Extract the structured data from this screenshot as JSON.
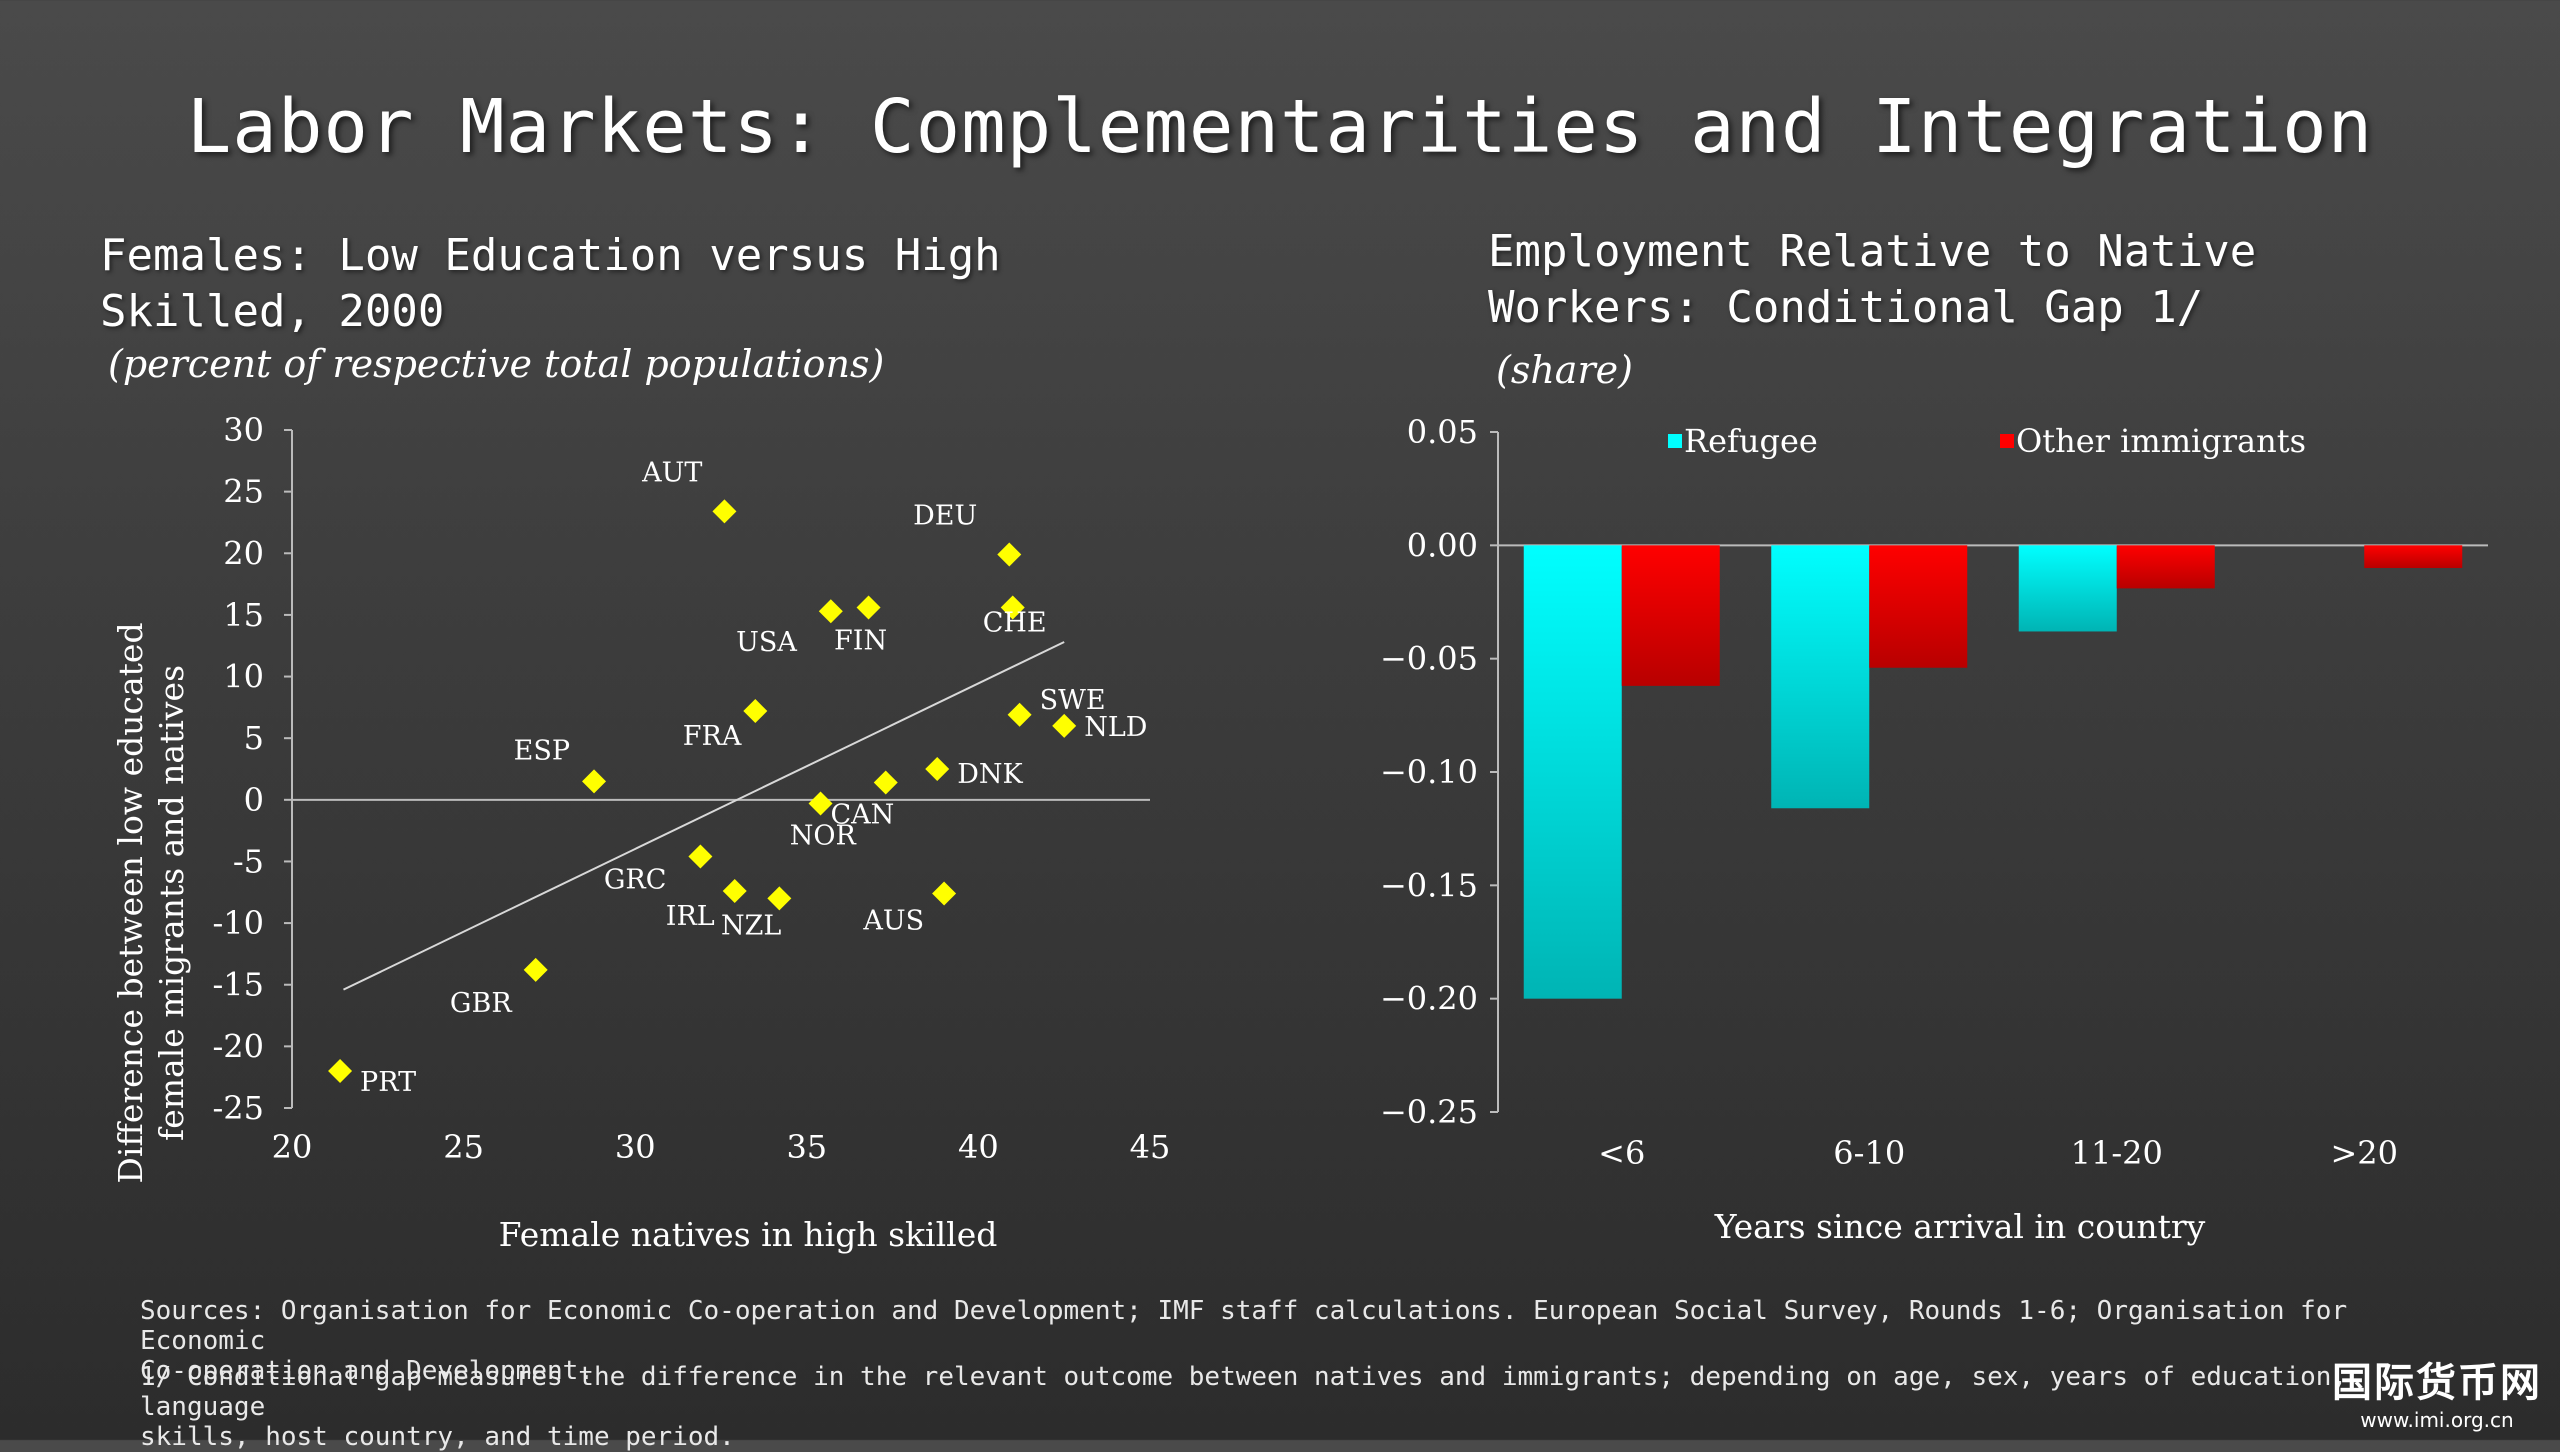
{
  "title": "Labor Markets: Complementarities and Integration",
  "left_panel": {
    "title_line1": "Females: Low Education versus High",
    "title_line2": "Skilled, 2000",
    "subtitle": "(percent of respective total populations)"
  },
  "right_panel": {
    "title_line1": "Employment Relative to Native",
    "title_line2": "Workers: Conditional Gap 1/",
    "subtitle": "(share)"
  },
  "chart_data": [
    {
      "type": "scatter",
      "xlabel": "Female natives in high skilled",
      "ylabel_line1": "Difference between low educated",
      "ylabel_line2": "female migrants and natives",
      "xlim": [
        20,
        45
      ],
      "ylim": [
        -25,
        30
      ],
      "xticks": [
        20,
        25,
        30,
        35,
        40,
        45
      ],
      "yticks": [
        30,
        25,
        20,
        15,
        10,
        5,
        0,
        -5,
        -10,
        -15,
        -20,
        -25
      ],
      "marker_color": "#ffff00",
      "points": [
        {
          "label": "PRT",
          "x": 21.4,
          "y": -22.0
        },
        {
          "label": "GBR",
          "x": 27.1,
          "y": -13.8
        },
        {
          "label": "ESP",
          "x": 28.8,
          "y": 1.5
        },
        {
          "label": "GRC",
          "x": 31.9,
          "y": -4.6
        },
        {
          "label": "IRL",
          "x": 32.9,
          "y": -7.4
        },
        {
          "label": "AUT",
          "x": 32.6,
          "y": 23.4
        },
        {
          "label": "FRA",
          "x": 33.5,
          "y": 7.2
        },
        {
          "label": "NZL",
          "x": 34.2,
          "y": -8.0
        },
        {
          "label": "CAN",
          "x": 35.4,
          "y": -0.3
        },
        {
          "label": "USA",
          "x": 35.7,
          "y": 15.3
        },
        {
          "label": "FIN",
          "x": 36.8,
          "y": 15.6
        },
        {
          "label": "NOR",
          "x": 37.3,
          "y": 1.4
        },
        {
          "label": "DNK",
          "x": 38.8,
          "y": 2.5
        },
        {
          "label": "AUS",
          "x": 39.0,
          "y": -7.6
        },
        {
          "label": "DEU",
          "x": 40.9,
          "y": 19.9
        },
        {
          "label": "CHE",
          "x": 41.0,
          "y": 15.6
        },
        {
          "label": "SWE",
          "x": 41.2,
          "y": 6.9
        },
        {
          "label": "NLD",
          "x": 42.5,
          "y": 6.0
        }
      ],
      "trendline": {
        "x": [
          21.5,
          42.5
        ],
        "y": [
          -15.4,
          12.8
        ]
      }
    },
    {
      "type": "bar",
      "xlabel": "Years since arrival in country",
      "categories": [
        "<6",
        "6-10",
        "11-20",
        ">20"
      ],
      "ylim": [
        -0.25,
        0.05
      ],
      "yticks": [
        "0.05",
        "0.00",
        "−0.05",
        "−0.10",
        "−0.15",
        "−0.20",
        "−0.25"
      ],
      "legend": "top",
      "series": [
        {
          "name": "Refugee",
          "color": "#00ffff",
          "values": [
            -0.2,
            -0.116,
            -0.038,
            null
          ]
        },
        {
          "name": "Other immigrants",
          "color": "#ff0000",
          "values": [
            -0.062,
            -0.054,
            -0.019,
            -0.01
          ]
        }
      ]
    }
  ],
  "footer": {
    "sources_line1": "Sources: Organisation for Economic Co-operation and Development; IMF staff calculations. European Social Survey, Rounds 1-6; Organisation for Economic",
    "sources_line2": "Co-operation and Development.",
    "note_line1": "1/ Conditional gap measures the difference in the relevant outcome between natives and immigrants; depending on age, sex, years of education, language",
    "note_line2": "skills, host country, and time period."
  },
  "watermark": {
    "text": "国际货币网",
    "url": "www.imi.org.cn"
  }
}
